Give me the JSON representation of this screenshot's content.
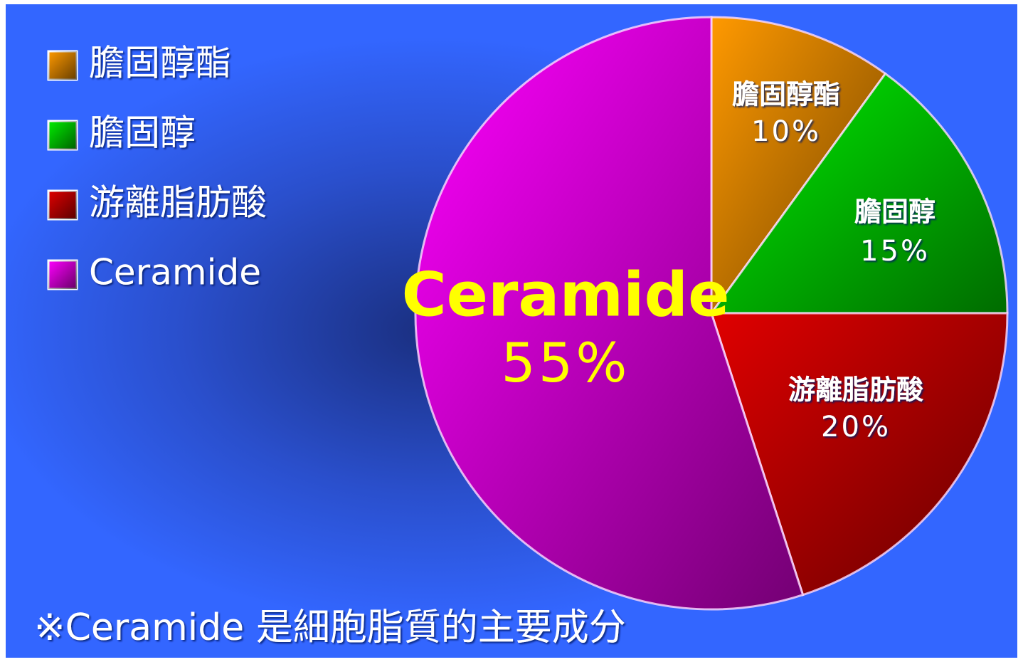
{
  "chart_data": {
    "type": "pie",
    "categories": [
      "膽固醇酯",
      "膽固醇",
      "游離脂肪酸",
      "Ceramide"
    ],
    "values": [
      10,
      15,
      20,
      55
    ],
    "value_labels": [
      "10%",
      "15%",
      "20%",
      "55%"
    ],
    "colors": [
      "#ff9900",
      "#00ee00",
      "#e00000",
      "#ff00ff"
    ],
    "legend": "top-left",
    "annotation": "※Ceramide 是細胞脂質的主要成分"
  }
}
